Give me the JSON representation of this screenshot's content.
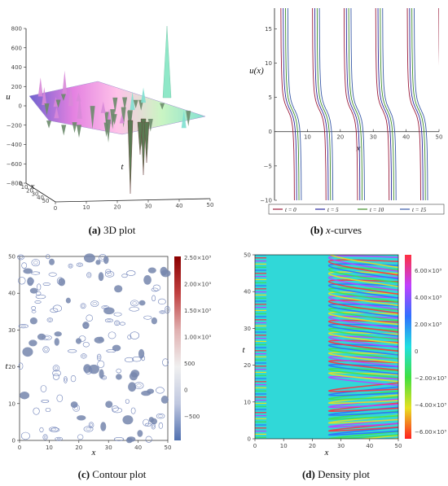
{
  "figure": {
    "captions": {
      "a": {
        "label": "(a)",
        "text": "3D plot"
      },
      "b": {
        "label": "(b)",
        "var": "x",
        "text": "-curves"
      },
      "c": {
        "label": "(c)",
        "text": "Contour plot"
      },
      "d": {
        "label": "(d)",
        "text": "Density plot"
      }
    }
  },
  "chart_data": [
    {
      "id": "a",
      "type": "surface3d",
      "zlabel": "u",
      "xlabel": "x",
      "ylabel": "t",
      "zticks": [
        "800",
        "600",
        "400",
        "200",
        "0",
        "−200",
        "−400",
        "−600",
        "−800"
      ],
      "tticks": [
        "0",
        "10",
        "20",
        "30",
        "40",
        "50"
      ],
      "xticks": [
        "0",
        "10",
        "20",
        "30",
        "40",
        "50"
      ],
      "zlim": [
        -900,
        900
      ],
      "colormap": [
        "#6a5acd",
        "#e37be0",
        "#ffc0e8",
        "#c8f5c0",
        "#7fe0d0"
      ]
    },
    {
      "id": "b",
      "type": "line",
      "xlabel": "x",
      "ylabel": "u(x)",
      "xlim": [
        0,
        50
      ],
      "ylim": [
        -10,
        18
      ],
      "xticks": [
        10,
        20,
        30,
        40,
        50
      ],
      "yticks": [
        -10,
        -5,
        0,
        5,
        10,
        15
      ],
      "series": [
        {
          "name": "t = 0",
          "color": "#9b1b3a"
        },
        {
          "name": "t = 5",
          "color": "#2a2a9e"
        },
        {
          "name": "t = 10",
          "color": "#3f8f2a"
        },
        {
          "name": "t = 15",
          "color": "#3a5aa8"
        }
      ],
      "legend": "bottom"
    },
    {
      "id": "c",
      "type": "contour",
      "xlabel": "x",
      "ylabel": "t",
      "xlim": [
        0,
        50
      ],
      "ylim": [
        0,
        50
      ],
      "xticks": [
        0,
        10,
        20,
        30,
        40,
        50
      ],
      "yticks": [
        0,
        10,
        20,
        30,
        40,
        50
      ],
      "colorbar": {
        "labels": [
          "2.50×10³",
          "2.00×10³",
          "1.50×10³",
          "1.00×10³",
          "500",
          "0",
          "−500"
        ],
        "colors": [
          "#8b0000",
          "#c04040",
          "#e0b0b0",
          "#f0f0f0",
          "#c0c8e0",
          "#5070b0"
        ]
      }
    },
    {
      "id": "d",
      "type": "heatmap",
      "xlabel": "x",
      "ylabel": "t",
      "xlim": [
        0,
        50
      ],
      "ylim": [
        0,
        50
      ],
      "xticks": [
        0,
        10,
        20,
        30,
        40,
        50
      ],
      "yticks": [
        0,
        10,
        20,
        30,
        40,
        50
      ],
      "colorbar": {
        "labels": [
          "6.00×10³",
          "4.00×10³",
          "2.00×10³",
          "0",
          "−2.00×10³",
          "−4.00×10³",
          "−6.00×10³"
        ],
        "colors": [
          "#ff3040",
          "#c040ff",
          "#3070ff",
          "#20e0e0",
          "#40e040",
          "#e8e020",
          "#ff2020"
        ]
      }
    }
  ]
}
